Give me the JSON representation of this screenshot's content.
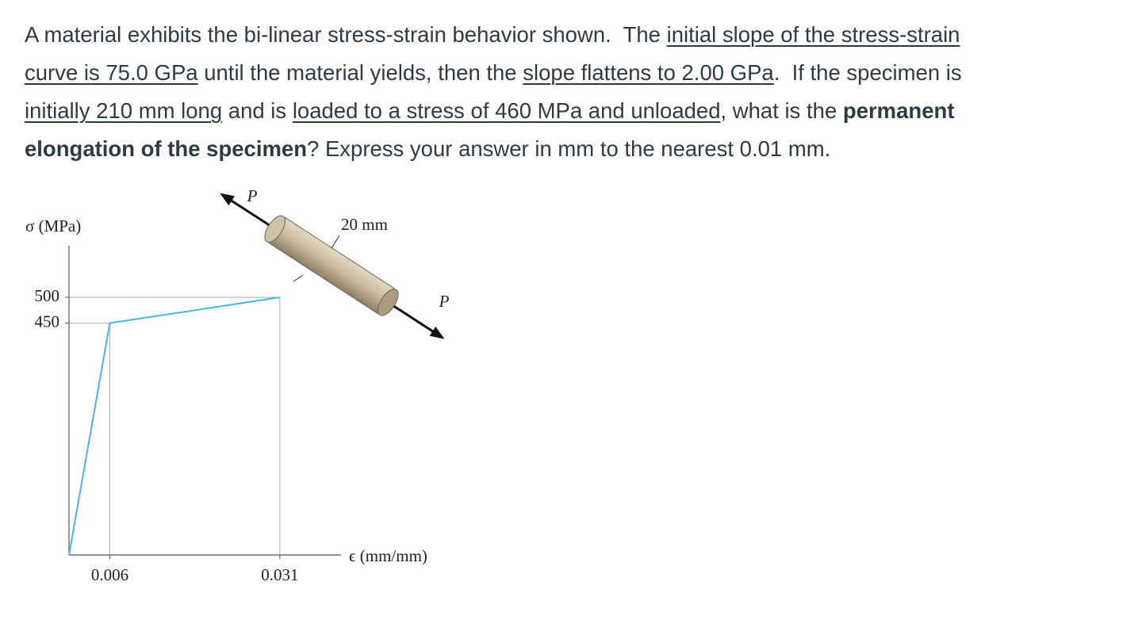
{
  "question": {
    "lines": [
      [
        {
          "text": "A material exhibits the bi-linear stress-strain behavior shown.  The ",
          "style": "plain"
        },
        {
          "text": "initial slope of the stress-strain",
          "style": "underline"
        }
      ],
      [
        {
          "text": "curve is 75.0 GPa",
          "style": "underline"
        },
        {
          "text": " until the material yields, then the ",
          "style": "plain"
        },
        {
          "text": "slope flattens to 2.00 GPa",
          "style": "underline"
        },
        {
          "text": ".  If the specimen is",
          "style": "plain"
        }
      ],
      [
        {
          "text": "initially 210 mm long",
          "style": "underline"
        },
        {
          "text": " and is ",
          "style": "plain"
        },
        {
          "text": "loaded to a stress of 460 MPa and unloaded",
          "style": "underline"
        },
        {
          "text": ", what is the ",
          "style": "plain"
        },
        {
          "text": "permanent",
          "style": "bold"
        }
      ],
      [
        {
          "text": "elongation of the specimen",
          "style": "bold"
        },
        {
          "text": "? Express your answer in mm to the nearest 0.01 mm.",
          "style": "plain"
        }
      ]
    ]
  },
  "chart_data": {
    "type": "line",
    "y_label": "σ (MPa)",
    "x_label": "ϵ (mm/mm)",
    "x": [
      0,
      0.006,
      0.031
    ],
    "series": [
      {
        "color": "#4ab3ea",
        "values": [
          0,
          450,
          500
        ]
      }
    ],
    "xlim": [
      0,
      0.04
    ],
    "ylim": [
      0,
      600
    ],
    "xticks": [
      {
        "value": 0.006,
        "label": "0.006"
      },
      {
        "value": 0.031,
        "label": "0.031"
      }
    ],
    "yticks": [
      450,
      500
    ]
  },
  "figure_labels": {
    "load_top": "P",
    "diameter": "20 mm",
    "load_bottom": "P"
  }
}
